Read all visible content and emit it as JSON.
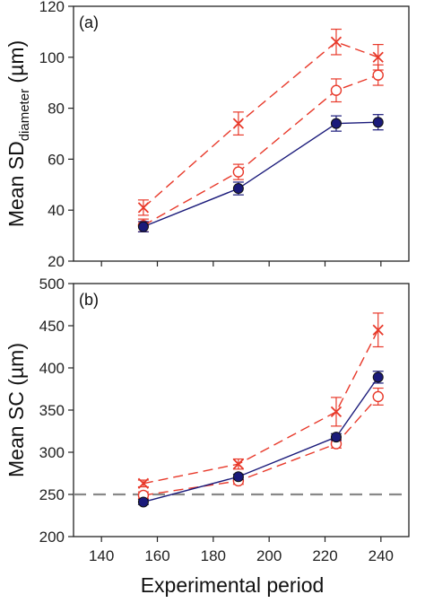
{
  "chart_data": [
    {
      "type": "line",
      "panel_label": "(a)",
      "ylabel": "Mean SD",
      "ylabel_sub": "diameter",
      "ylabel_unit": " (µm)",
      "xlabel": "",
      "x": [
        155,
        189,
        224,
        239
      ],
      "xlim": [
        130,
        250
      ],
      "ylim": [
        20,
        120
      ],
      "xticks": [
        140,
        160,
        180,
        200,
        220,
        240
      ],
      "yticks": [
        20,
        40,
        60,
        80,
        100,
        120
      ],
      "show_x_tick_labels": false,
      "reference_line": null,
      "series": [
        {
          "style": "cross-dashed",
          "color": "#e8392a",
          "values": [
            41,
            74,
            106,
            100
          ],
          "errors": [
            3,
            4.5,
            5,
            5
          ]
        },
        {
          "style": "open-circle-dashed",
          "color": "#e8392a",
          "values": [
            34,
            55,
            87,
            93
          ],
          "errors": [
            2.5,
            3,
            4.5,
            4
          ]
        },
        {
          "style": "filled-circle-solid",
          "color": "#1a1a7a",
          "values": [
            33.5,
            48.5,
            74,
            74.5
          ],
          "errors": [
            2,
            2.5,
            3,
            3
          ]
        }
      ]
    },
    {
      "type": "line",
      "panel_label": "(b)",
      "ylabel": "Mean SC (µm)",
      "xlabel": "Experimental period",
      "x": [
        155,
        189,
        224,
        239
      ],
      "xlim": [
        130,
        250
      ],
      "ylim": [
        200,
        500
      ],
      "xticks": [
        140,
        160,
        180,
        200,
        220,
        240
      ],
      "yticks": [
        200,
        250,
        300,
        350,
        400,
        450,
        500
      ],
      "show_x_tick_labels": true,
      "reference_line": {
        "y": 250,
        "color": "#888888",
        "style": "dashed"
      },
      "series": [
        {
          "style": "cross-dashed",
          "color": "#e8392a",
          "values": [
            263,
            286,
            348,
            445
          ],
          "errors": [
            4,
            6,
            17,
            20
          ]
        },
        {
          "style": "open-circle-dashed",
          "color": "#e8392a",
          "values": [
            249,
            266,
            310,
            366
          ],
          "errors": [
            4,
            4,
            5,
            10
          ]
        },
        {
          "style": "filled-circle-solid",
          "color": "#1a1a7a",
          "values": [
            241,
            271,
            318,
            389
          ],
          "errors": [
            3,
            3,
            4,
            7
          ]
        }
      ]
    }
  ]
}
